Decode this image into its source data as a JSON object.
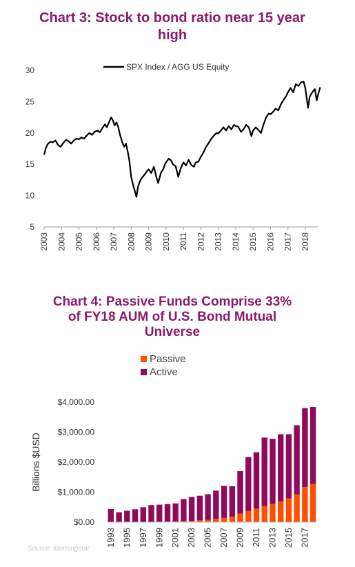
{
  "chart_data": [
    {
      "type": "line",
      "title": "Chart 3: Stock to bond ratio near 15 year high",
      "xlabel": "",
      "ylabel": "",
      "ylim": [
        5,
        30
      ],
      "yticks": [
        5,
        10,
        15,
        20,
        25,
        30
      ],
      "x_tick_labels": [
        "2003",
        "2004",
        "2005",
        "2006",
        "2007",
        "2008",
        "2009",
        "2010",
        "2011",
        "2012",
        "2013",
        "2014",
        "2015",
        "2016",
        "2017",
        "2018"
      ],
      "legend_placement": "top-center",
      "grid": false,
      "series": [
        {
          "name": "SPX Index / AGG US Equity",
          "color": "#000000",
          "x": [
            2003.0,
            2003.1,
            2003.2,
            2003.35,
            2003.5,
            2003.65,
            2003.8,
            2003.95,
            2004.1,
            2004.25,
            2004.4,
            2004.55,
            2004.7,
            2004.85,
            2005.0,
            2005.15,
            2005.3,
            2005.45,
            2005.6,
            2005.75,
            2005.9,
            2006.05,
            2006.2,
            2006.35,
            2006.5,
            2006.6,
            2006.75,
            2006.85,
            2006.95,
            2007.05,
            2007.15,
            2007.25,
            2007.35,
            2007.5,
            2007.6,
            2007.7,
            2007.8,
            2007.9,
            2008.0,
            2008.1,
            2008.2,
            2008.3,
            2008.4,
            2008.5,
            2008.6,
            2008.75,
            2008.9,
            2009.0,
            2009.15,
            2009.3,
            2009.45,
            2009.55,
            2009.7,
            2009.85,
            2009.95,
            2010.05,
            2010.15,
            2010.3,
            2010.4,
            2010.55,
            2010.7,
            2010.85,
            2011.0,
            2011.15,
            2011.3,
            2011.45,
            2011.6,
            2011.7,
            2011.85,
            2012.0,
            2012.15,
            2012.3,
            2012.45,
            2012.6,
            2012.75,
            2012.9,
            2013.0,
            2013.15,
            2013.3,
            2013.45,
            2013.6,
            2013.75,
            2013.9,
            2014.0,
            2014.15,
            2014.3,
            2014.45,
            2014.6,
            2014.75,
            2014.9,
            2015.0,
            2015.15,
            2015.3,
            2015.45,
            2015.6,
            2015.75,
            2015.9,
            2016.0,
            2016.15,
            2016.3,
            2016.45,
            2016.6,
            2016.75,
            2016.9,
            2017.0,
            2017.15,
            2017.3,
            2017.45,
            2017.6,
            2017.75,
            2017.9,
            2018.0,
            2018.08,
            2018.15,
            2018.25,
            2018.35,
            2018.45,
            2018.55,
            2018.65,
            2018.75,
            2018.85
          ],
          "y": [
            16.5,
            17.6,
            18.2,
            18.6,
            18.5,
            18.8,
            18.1,
            17.8,
            18.4,
            18.9,
            18.7,
            18.3,
            18.8,
            19.1,
            19.0,
            19.3,
            19.1,
            19.6,
            20.0,
            19.7,
            20.2,
            20.4,
            20.1,
            20.8,
            21.4,
            20.9,
            21.9,
            22.5,
            22.0,
            21.2,
            21.7,
            21.0,
            19.8,
            18.4,
            17.8,
            18.3,
            17.0,
            15.5,
            13.0,
            11.8,
            10.8,
            9.8,
            11.5,
            12.3,
            12.8,
            13.3,
            13.9,
            14.2,
            13.6,
            14.6,
            12.9,
            12.0,
            13.6,
            14.3,
            15.1,
            15.5,
            15.9,
            15.6,
            15.0,
            14.7,
            13.0,
            14.4,
            15.3,
            14.8,
            15.7,
            14.9,
            14.6,
            15.3,
            15.4,
            16.2,
            16.9,
            17.8,
            18.4,
            19.1,
            19.6,
            20.0,
            19.9,
            20.4,
            20.9,
            20.4,
            21.1,
            20.6,
            21.3,
            21.1,
            21.0,
            20.2,
            20.6,
            21.3,
            20.9,
            19.5,
            20.4,
            20.9,
            20.5,
            20.0,
            21.4,
            22.5,
            23.1,
            23.0,
            23.4,
            23.9,
            23.6,
            24.6,
            25.3,
            25.9,
            26.5,
            27.2,
            26.5,
            27.8,
            27.5,
            28.1,
            28.2,
            27.1,
            25.5,
            24.0,
            25.8,
            26.3,
            26.7,
            27.0,
            25.2,
            26.3,
            27.3
          ]
        }
      ]
    },
    {
      "type": "bar",
      "stacked": true,
      "title": "Chart 4: Passive Funds Comprise 33% of FY18 AUM of U.S. Bond Mutual Universe",
      "xlabel": "",
      "ylabel": "Billions $USD",
      "ylim": [
        0,
        4000
      ],
      "yticks": [
        0,
        1000,
        2000,
        3000,
        4000
      ],
      "ytick_labels": [
        "$0.00",
        "$1,000.00",
        "$2,000.00",
        "$3,000.00",
        "$4,000.00"
      ],
      "categories": [
        "1993",
        "1994",
        "1995",
        "1996",
        "1997",
        "1998",
        "1999",
        "2000",
        "2001",
        "2002",
        "2003",
        "2004",
        "2005",
        "2006",
        "2007",
        "2008",
        "2009",
        "2010",
        "2011",
        "2012",
        "2013",
        "2014",
        "2015",
        "2016",
        "2017",
        "2018"
      ],
      "x_tick_labels": [
        "1993",
        "1995",
        "1997",
        "1999",
        "2001",
        "2003",
        "2005",
        "2007",
        "2009",
        "2011",
        "2013",
        "2015",
        "2017"
      ],
      "legend_placement": "top-center",
      "series": [
        {
          "name": "Passive",
          "color": "#ff4e00",
          "values": [
            5,
            5,
            6,
            7,
            9,
            11,
            14,
            17,
            22,
            30,
            45,
            60,
            80,
            110,
            150,
            180,
            280,
            370,
            450,
            540,
            610,
            690,
            790,
            930,
            1170,
            1270
          ]
        },
        {
          "name": "Active",
          "color": "#8e0a5b",
          "values": [
            435,
            325,
            374,
            423,
            491,
            559,
            571,
            583,
            603,
            740,
            795,
            820,
            850,
            940,
            1060,
            1020,
            1420,
            1800,
            1880,
            2280,
            2170,
            2240,
            2140,
            2300,
            2630,
            2570
          ]
        }
      ],
      "source": "Source: Morningstar"
    }
  ]
}
